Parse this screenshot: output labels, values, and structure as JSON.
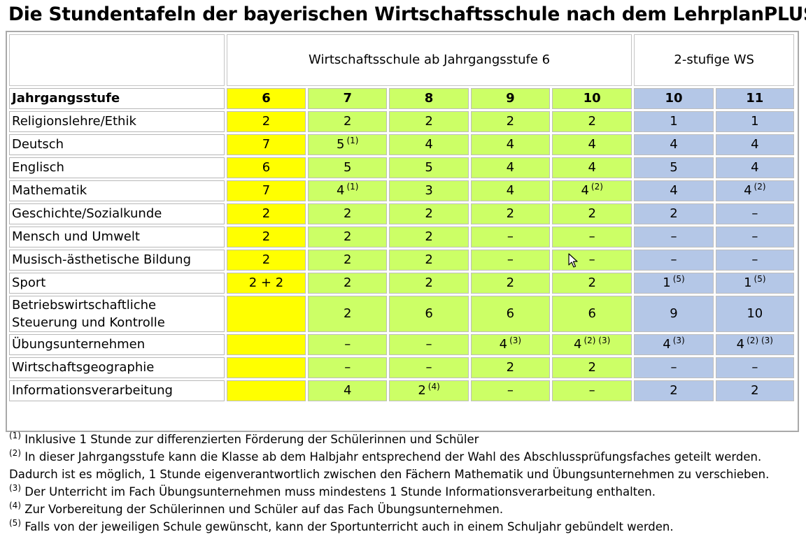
{
  "title": "Die Stundentafeln der bayerischen Wirtschaftsschule nach dem LehrplanPLUS",
  "header": {
    "group1": "Wirtschaftsschule ab Jahrgangsstufe 6",
    "group2": "2-stufige WS",
    "row_label": "Jahrgangsstufe",
    "grades": [
      "6",
      "7",
      "8",
      "9",
      "10",
      "10",
      "11"
    ]
  },
  "colors": {
    "grade6": "#ffff00",
    "ws6": "#ccff66",
    "ws2": "#b4c7e7"
  },
  "rows": [
    {
      "subject": "Religionslehre/Ethik",
      "cells": [
        {
          "v": "2",
          "n": ""
        },
        {
          "v": "2",
          "n": ""
        },
        {
          "v": "2",
          "n": ""
        },
        {
          "v": "2",
          "n": ""
        },
        {
          "v": "2",
          "n": ""
        },
        {
          "v": "1",
          "n": ""
        },
        {
          "v": "1",
          "n": ""
        }
      ]
    },
    {
      "subject": "Deutsch",
      "cells": [
        {
          "v": "7",
          "n": ""
        },
        {
          "v": "5",
          "n": "(1)"
        },
        {
          "v": "4",
          "n": ""
        },
        {
          "v": "4",
          "n": ""
        },
        {
          "v": "4",
          "n": ""
        },
        {
          "v": "4",
          "n": ""
        },
        {
          "v": "4",
          "n": ""
        }
      ]
    },
    {
      "subject": "Englisch",
      "cells": [
        {
          "v": "6",
          "n": ""
        },
        {
          "v": "5",
          "n": ""
        },
        {
          "v": "5",
          "n": ""
        },
        {
          "v": "4",
          "n": ""
        },
        {
          "v": "4",
          "n": ""
        },
        {
          "v": "5",
          "n": ""
        },
        {
          "v": "4",
          "n": ""
        }
      ]
    },
    {
      "subject": "Mathematik",
      "cells": [
        {
          "v": "7",
          "n": ""
        },
        {
          "v": "4",
          "n": "(1)"
        },
        {
          "v": "3",
          "n": ""
        },
        {
          "v": "4",
          "n": ""
        },
        {
          "v": "4",
          "n": "(2)"
        },
        {
          "v": "4",
          "n": ""
        },
        {
          "v": "4",
          "n": "(2)"
        }
      ]
    },
    {
      "subject": "Geschichte/Sozialkunde",
      "cells": [
        {
          "v": "2",
          "n": ""
        },
        {
          "v": "2",
          "n": ""
        },
        {
          "v": "2",
          "n": ""
        },
        {
          "v": "2",
          "n": ""
        },
        {
          "v": "2",
          "n": ""
        },
        {
          "v": "2",
          "n": ""
        },
        {
          "v": "–",
          "n": ""
        }
      ]
    },
    {
      "subject": "Mensch und Umwelt",
      "cells": [
        {
          "v": "2",
          "n": ""
        },
        {
          "v": "2",
          "n": ""
        },
        {
          "v": "2",
          "n": ""
        },
        {
          "v": "–",
          "n": ""
        },
        {
          "v": "–",
          "n": ""
        },
        {
          "v": "–",
          "n": ""
        },
        {
          "v": "–",
          "n": ""
        }
      ]
    },
    {
      "subject": "Musisch-ästhetische Bildung",
      "cells": [
        {
          "v": "2",
          "n": ""
        },
        {
          "v": "2",
          "n": ""
        },
        {
          "v": "2",
          "n": ""
        },
        {
          "v": "–",
          "n": ""
        },
        {
          "v": "–",
          "n": ""
        },
        {
          "v": "–",
          "n": ""
        },
        {
          "v": "–",
          "n": ""
        }
      ]
    },
    {
      "subject": "Sport",
      "cells": [
        {
          "v": "2 + 2",
          "n": ""
        },
        {
          "v": "2",
          "n": ""
        },
        {
          "v": "2",
          "n": ""
        },
        {
          "v": "2",
          "n": ""
        },
        {
          "v": "2",
          "n": ""
        },
        {
          "v": "1",
          "n": "(5)"
        },
        {
          "v": "1",
          "n": "(5)"
        }
      ]
    },
    {
      "subject": "Betriebswirtschaftliche Steuerung und Kontrolle",
      "cells": [
        {
          "v": "",
          "n": ""
        },
        {
          "v": "2",
          "n": ""
        },
        {
          "v": "6",
          "n": ""
        },
        {
          "v": "6",
          "n": ""
        },
        {
          "v": "6",
          "n": ""
        },
        {
          "v": "9",
          "n": ""
        },
        {
          "v": "10",
          "n": ""
        }
      ]
    },
    {
      "subject": "Übungsunternehmen",
      "cells": [
        {
          "v": "",
          "n": ""
        },
        {
          "v": "–",
          "n": ""
        },
        {
          "v": "–",
          "n": ""
        },
        {
          "v": "4",
          "n": "(3)"
        },
        {
          "v": "4",
          "n": "(2) (3)"
        },
        {
          "v": "4",
          "n": "(3)"
        },
        {
          "v": "4",
          "n": "(2) (3)"
        }
      ]
    },
    {
      "subject": "Wirtschaftsgeographie",
      "cells": [
        {
          "v": "",
          "n": ""
        },
        {
          "v": "–",
          "n": ""
        },
        {
          "v": "–",
          "n": ""
        },
        {
          "v": "2",
          "n": ""
        },
        {
          "v": "2",
          "n": ""
        },
        {
          "v": "–",
          "n": ""
        },
        {
          "v": "–",
          "n": ""
        }
      ]
    },
    {
      "subject": "Informationsverarbeitung",
      "cells": [
        {
          "v": "",
          "n": ""
        },
        {
          "v": "4",
          "n": ""
        },
        {
          "v": "2",
          "n": "(4)"
        },
        {
          "v": "–",
          "n": ""
        },
        {
          "v": "–",
          "n": ""
        },
        {
          "v": "2",
          "n": ""
        },
        {
          "v": "2",
          "n": ""
        }
      ]
    }
  ],
  "footnotes": [
    {
      "mark": "(1)",
      "text": "Inklusive 1 Stunde zur differenzierten Förderung der Schülerinnen und Schüler"
    },
    {
      "mark": "(2)",
      "text": "In dieser Jahrgangsstufe kann die Klasse ab dem Halbjahr entsprechend der Wahl des Abschlussprüfungsfaches geteilt werden."
    },
    {
      "mark": "",
      "text": "Dadurch ist es möglich, 1 Stunde eigenverantwortlich zwischen den Fächern Mathematik und Übungsunternehmen zu verschieben."
    },
    {
      "mark": "(3)",
      "text": "Der Unterricht im Fach Übungsunternehmen muss mindestens 1 Stunde Informationsverarbeitung enthalten."
    },
    {
      "mark": "(4)",
      "text": "Zur Vorbereitung der Schülerinnen und Schüler auf das Fach Übungsunternehmen."
    },
    {
      "mark": "(5)",
      "text": "Falls von der jeweiligen Schule gewünscht, kann der Sportunterricht auch in einem Schuljahr gebündelt werden."
    }
  ]
}
